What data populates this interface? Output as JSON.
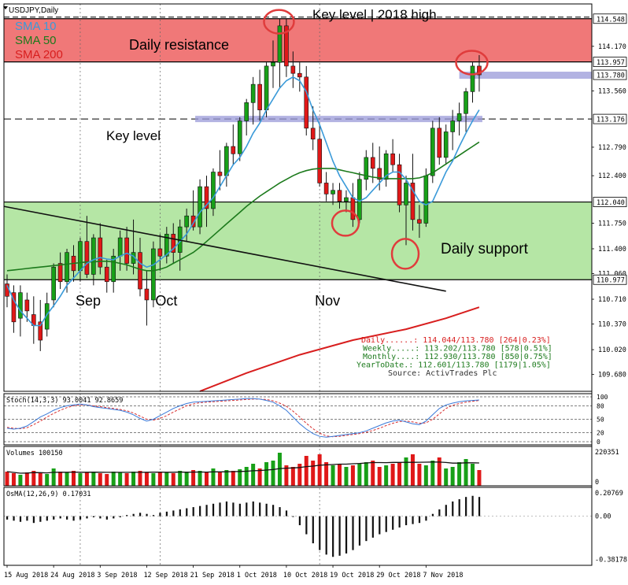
{
  "chart_data": {
    "type": "candlestick",
    "symbol_label": "USDJPY,Daily",
    "title_annotation": "Key level | 2018 high",
    "zones": {
      "resistance_label": "Daily resistance",
      "resistance_range": [
        113.957,
        114.548
      ],
      "support_label": "Daily support",
      "support_range": [
        110.977,
        112.04
      ],
      "key_level_label": "Key level",
      "key_level": 113.176,
      "resistance_color": "#f07878",
      "support_color": "#b5e6a5"
    },
    "price_axis": {
      "range": [
        109.45,
        114.75
      ],
      "ticks": [
        "114.170",
        "113.560",
        "112.790",
        "112.400",
        "111.750",
        "111.400",
        "111.060",
        "110.710",
        "110.370",
        "110.020",
        "109.680"
      ],
      "tick_values": [
        114.17,
        113.56,
        112.79,
        112.4,
        111.75,
        111.4,
        111.06,
        110.71,
        110.37,
        110.02,
        109.68
      ],
      "highlight_labels": [
        "114.548",
        "113.957",
        "113.780",
        "113.176",
        "112.040",
        "110.977"
      ],
      "highlight_values": [
        114.548,
        113.957,
        113.78,
        113.176,
        112.04,
        110.977
      ]
    },
    "month_labels": [
      "Sep",
      "Oct",
      "Nov"
    ],
    "month_index": [
      11,
      23,
      47
    ],
    "date_labels": [
      "15 Aug 2018",
      "24 Aug 2018",
      "3 Sep 2018",
      "12 Sep 2018",
      "21 Sep 2018",
      "1 Oct 2018",
      "10 Oct 2018",
      "19 Oct 2018",
      "29 Oct 2018",
      "7 Nov 2018"
    ],
    "date_index": [
      0,
      7,
      14,
      21,
      28,
      35,
      42,
      49,
      56,
      63
    ],
    "legend": [
      {
        "name": "SMA 10",
        "color": "#3a9ad9"
      },
      {
        "name": "SMA 50",
        "color": "#1c7a1c"
      },
      {
        "name": "SMA 200",
        "color": "#d81e1e"
      }
    ],
    "candles": {
      "columns": [
        "open",
        "high",
        "low",
        "close"
      ],
      "rows": [
        [
          110.92,
          111.05,
          110.6,
          110.75
        ],
        [
          110.8,
          110.9,
          110.25,
          110.4
        ],
        [
          110.45,
          110.9,
          110.2,
          110.8
        ],
        [
          110.7,
          110.8,
          110.4,
          110.55
        ],
        [
          110.5,
          110.75,
          110.1,
          110.35
        ],
        [
          110.4,
          110.7,
          110.0,
          110.15
        ],
        [
          110.3,
          110.8,
          110.2,
          110.65
        ],
        [
          110.7,
          111.2,
          110.6,
          111.15
        ],
        [
          111.2,
          111.35,
          110.85,
          110.95
        ],
        [
          110.95,
          111.4,
          110.8,
          111.35
        ],
        [
          111.3,
          111.45,
          110.95,
          111.1
        ],
        [
          111.1,
          111.55,
          110.95,
          111.5
        ],
        [
          111.5,
          111.85,
          111.0,
          111.05
        ],
        [
          111.05,
          111.6,
          110.9,
          111.55
        ],
        [
          111.55,
          111.75,
          111.05,
          111.15
        ],
        [
          111.15,
          111.25,
          110.8,
          110.95
        ],
        [
          110.95,
          111.4,
          110.8,
          111.3
        ],
        [
          111.3,
          111.65,
          111.1,
          111.55
        ],
        [
          111.55,
          111.7,
          111.1,
          111.2
        ],
        [
          111.2,
          111.8,
          111.05,
          111.35
        ],
        [
          111.35,
          111.55,
          110.75,
          110.85
        ],
        [
          110.85,
          111.1,
          110.35,
          110.7
        ],
        [
          110.7,
          111.5,
          110.6,
          111.4
        ],
        [
          111.4,
          111.6,
          111.1,
          111.3
        ],
        [
          111.3,
          111.7,
          111.2,
          111.6
        ],
        [
          111.6,
          111.75,
          111.2,
          111.35
        ],
        [
          111.35,
          111.8,
          111.1,
          111.7
        ],
        [
          111.7,
          111.95,
          111.5,
          111.85
        ],
        [
          111.85,
          112.2,
          111.65,
          111.7
        ],
        [
          111.7,
          112.35,
          111.6,
          112.25
        ],
        [
          112.25,
          112.4,
          111.7,
          111.95
        ],
        [
          111.95,
          112.5,
          111.85,
          112.45
        ],
        [
          112.45,
          112.75,
          112.2,
          112.4
        ],
        [
          112.4,
          112.85,
          112.25,
          112.8
        ],
        [
          112.8,
          113.1,
          112.55,
          112.7
        ],
        [
          112.7,
          113.2,
          112.6,
          113.15
        ],
        [
          113.15,
          113.45,
          112.95,
          113.4
        ],
        [
          113.4,
          113.75,
          113.1,
          113.65
        ],
        [
          113.65,
          113.85,
          113.15,
          113.3
        ],
        [
          113.3,
          113.95,
          113.2,
          113.9
        ],
        [
          113.9,
          114.25,
          113.6,
          113.95
        ],
        [
          113.95,
          114.55,
          113.6,
          114.45
        ],
        [
          114.45,
          114.55,
          113.75,
          113.9
        ],
        [
          113.9,
          114.1,
          113.6,
          113.8
        ],
        [
          113.8,
          113.95,
          113.55,
          113.75
        ],
        [
          113.75,
          113.9,
          112.95,
          113.05
        ],
        [
          113.05,
          113.35,
          112.75,
          112.9
        ],
        [
          112.9,
          113.1,
          112.25,
          112.3
        ],
        [
          112.3,
          112.45,
          112.05,
          112.15
        ],
        [
          112.15,
          112.3,
          112.0,
          112.2
        ],
        [
          112.2,
          112.3,
          111.95,
          112.05
        ],
        [
          112.05,
          112.2,
          111.9,
          112.1
        ],
        [
          112.1,
          112.3,
          111.7,
          111.8
        ],
        [
          111.8,
          112.45,
          111.75,
          112.35
        ],
        [
          112.35,
          112.75,
          112.2,
          112.65
        ],
        [
          112.65,
          112.85,
          112.3,
          112.5
        ],
        [
          112.5,
          112.8,
          112.2,
          112.35
        ],
        [
          112.35,
          112.75,
          112.25,
          112.7
        ],
        [
          112.7,
          112.9,
          112.45,
          112.55
        ],
        [
          112.55,
          112.7,
          111.9,
          112.0
        ],
        [
          112.0,
          112.4,
          111.45,
          112.3
        ],
        [
          112.3,
          112.7,
          111.65,
          111.8
        ],
        [
          111.8,
          112.0,
          111.55,
          111.75
        ],
        [
          111.75,
          112.5,
          111.7,
          112.4
        ],
        [
          112.4,
          113.15,
          112.3,
          113.05
        ],
        [
          113.05,
          113.2,
          112.55,
          112.65
        ],
        [
          112.65,
          113.1,
          112.55,
          113.0
        ],
        [
          113.0,
          113.3,
          112.75,
          113.15
        ],
        [
          113.15,
          113.4,
          112.95,
          113.25
        ],
        [
          113.25,
          113.6,
          113.0,
          113.55
        ],
        [
          113.55,
          113.95,
          113.4,
          113.9
        ],
        [
          113.9,
          114.05,
          113.55,
          113.78
        ]
      ]
    },
    "sma10": [
      110.9,
      110.7,
      110.55,
      110.45,
      110.35,
      110.35,
      110.5,
      110.62,
      110.75,
      110.9,
      111.0,
      111.1,
      111.2,
      111.25,
      111.28,
      111.26,
      111.25,
      111.3,
      111.34,
      111.3,
      111.2,
      111.15,
      111.18,
      111.25,
      111.32,
      111.4,
      111.5,
      111.6,
      111.75,
      111.9,
      112.0,
      112.1,
      112.25,
      112.4,
      112.55,
      112.65,
      112.8,
      112.98,
      113.12,
      113.3,
      113.45,
      113.6,
      113.7,
      113.75,
      113.7,
      113.55,
      113.3,
      113.1,
      112.85,
      112.6,
      112.4,
      112.25,
      112.1,
      112.05,
      112.1,
      112.2,
      112.3,
      112.4,
      112.45,
      112.45,
      112.35,
      112.2,
      112.05,
      112.0,
      112.05,
      112.25,
      112.45,
      112.6,
      112.8,
      112.98,
      113.15,
      113.3
    ],
    "sma50": [
      111.1,
      111.11,
      111.12,
      111.13,
      111.14,
      111.15,
      111.16,
      111.17,
      111.18,
      111.19,
      111.2,
      111.21,
      111.22,
      111.22,
      111.23,
      111.23,
      111.22,
      111.2,
      111.18,
      111.15,
      111.12,
      111.1,
      111.1,
      111.12,
      111.15,
      111.2,
      111.25,
      111.3,
      111.35,
      111.42,
      111.5,
      111.58,
      111.66,
      111.74,
      111.82,
      111.9,
      111.98,
      112.05,
      112.12,
      112.18,
      112.24,
      112.3,
      112.35,
      112.4,
      112.44,
      112.47,
      112.49,
      112.5,
      112.5,
      112.5,
      112.48,
      112.46,
      112.44,
      112.42,
      112.4,
      112.38,
      112.37,
      112.36,
      112.36,
      112.36,
      112.36,
      112.36,
      112.37,
      112.4,
      112.44,
      112.5,
      112.56,
      112.62,
      112.68,
      112.74,
      112.8,
      112.86
    ],
    "sma200": [
      {
        "i": 29,
        "v": 109.45
      },
      {
        "i": 36,
        "v": 109.7
      },
      {
        "i": 44,
        "v": 109.95
      },
      {
        "i": 52,
        "v": 110.15
      },
      {
        "i": 60,
        "v": 110.3
      },
      {
        "i": 66,
        "v": 110.45
      },
      {
        "i": 71,
        "v": 110.6
      }
    ],
    "trendline": {
      "start": {
        "i": 0,
        "v": 111.98
      },
      "end": {
        "i": 66,
        "v": 110.82
      }
    },
    "key_line_range": [
      29,
      71
    ],
    "highlight_circles": [
      {
        "i": 41,
        "v": 114.55
      },
      {
        "i": 70,
        "v": 113.99
      },
      {
        "i": 51,
        "v": 111.88
      },
      {
        "i": 60,
        "v": 111.46
      }
    ],
    "stats_panel": {
      "lines": [
        "Daily......: 114.044/113.780 [264|0.23%]",
        "Weekly.....: 113.202/113.780 [578|0.51%]",
        "Monthly....: 112.930/113.780 [850|0.75%]",
        "YearToDate.: 112.601/113.780 [1179|1.05%]",
        "Source: ActivTrades Plc"
      ],
      "colors": [
        "#d81e1e",
        "#1c7a1c",
        "#1c7a1c",
        "#1c7a1c",
        "#333333"
      ]
    },
    "stochastic": {
      "label": "Stoch(14,3,3) 93.0041 92.8659",
      "levels": [
        100,
        80,
        50,
        20,
        0
      ],
      "level_labels": [
        "100",
        "80",
        "50",
        "20",
        "0"
      ],
      "k": [
        30,
        28,
        30,
        35,
        45,
        55,
        62,
        70,
        76,
        80,
        82,
        84,
        82,
        78,
        76,
        74,
        72,
        70,
        66,
        60,
        52,
        46,
        50,
        58,
        66,
        74,
        80,
        85,
        88,
        89,
        90,
        91,
        92,
        93,
        94,
        95,
        96,
        96,
        95,
        92,
        88,
        80,
        70,
        55,
        40,
        28,
        18,
        12,
        10,
        12,
        14,
        16,
        18,
        20,
        24,
        30,
        36,
        42,
        46,
        48,
        44,
        40,
        38,
        46,
        60,
        74,
        82,
        86,
        89,
        91,
        92,
        93
      ],
      "d": [
        32,
        30,
        29,
        31,
        38,
        46,
        55,
        63,
        70,
        76,
        80,
        82,
        82,
        80,
        78,
        76,
        74,
        72,
        69,
        64,
        57,
        50,
        48,
        52,
        58,
        66,
        73,
        80,
        84,
        87,
        88,
        89,
        90,
        91,
        92,
        93,
        94,
        95,
        95,
        94,
        91,
        86,
        79,
        68,
        55,
        41,
        29,
        19,
        13,
        11,
        12,
        14,
        16,
        18,
        21,
        25,
        30,
        36,
        41,
        45,
        46,
        44,
        41,
        42,
        50,
        62,
        74,
        81,
        85,
        88,
        90,
        92
      ]
    },
    "volumes": {
      "label": "Volumes 100150",
      "axis_labels": [
        "220351",
        "0"
      ],
      "max": 230000,
      "values": [
        90000,
        80000,
        70000,
        85000,
        95000,
        80000,
        75000,
        110000,
        90000,
        85000,
        95000,
        80000,
        85000,
        90000,
        80000,
        75000,
        90000,
        85000,
        80000,
        90000,
        95000,
        85000,
        80000,
        90000,
        85000,
        80000,
        95000,
        90000,
        100000,
        95000,
        90000,
        110000,
        85000,
        100000,
        95000,
        105000,
        120000,
        140000,
        110000,
        150000,
        160000,
        210000,
        130000,
        120000,
        140000,
        190000,
        160000,
        200000,
        150000,
        130000,
        140000,
        120000,
        130000,
        140000,
        150000,
        160000,
        120000,
        130000,
        140000,
        150000,
        180000,
        200000,
        140000,
        130000,
        160000,
        180000,
        110000,
        120000,
        150000,
        170000,
        140000,
        100000
      ],
      "up_color": "#18a018",
      "down_color": "#e01818",
      "ma_color": "#111111"
    },
    "osma": {
      "label": "OsMA(12,26,9) 0.17031",
      "axis_labels": [
        "0.20769",
        "0.00",
        "-0.38178"
      ],
      "range": [
        -0.4,
        0.22
      ],
      "values": [
        -0.03,
        -0.04,
        -0.05,
        -0.04,
        -0.06,
        -0.05,
        -0.04,
        -0.03,
        -0.02,
        -0.03,
        -0.04,
        -0.03,
        -0.02,
        -0.01,
        -0.02,
        -0.03,
        -0.02,
        -0.01,
        0.01,
        0.02,
        0.03,
        0.02,
        0.01,
        0.03,
        0.04,
        0.05,
        0.06,
        0.07,
        0.08,
        0.09,
        0.1,
        0.11,
        0.12,
        0.13,
        0.12,
        0.11,
        0.12,
        0.13,
        0.12,
        0.11,
        0.1,
        0.08,
        0.05,
        0.0,
        -0.08,
        -0.16,
        -0.24,
        -0.3,
        -0.34,
        -0.36,
        -0.35,
        -0.33,
        -0.3,
        -0.26,
        -0.22,
        -0.19,
        -0.16,
        -0.14,
        -0.12,
        -0.1,
        -0.08,
        -0.07,
        -0.06,
        -0.04,
        0.02,
        0.06,
        0.1,
        0.13,
        0.15,
        0.17,
        0.18,
        0.17
      ]
    }
  }
}
